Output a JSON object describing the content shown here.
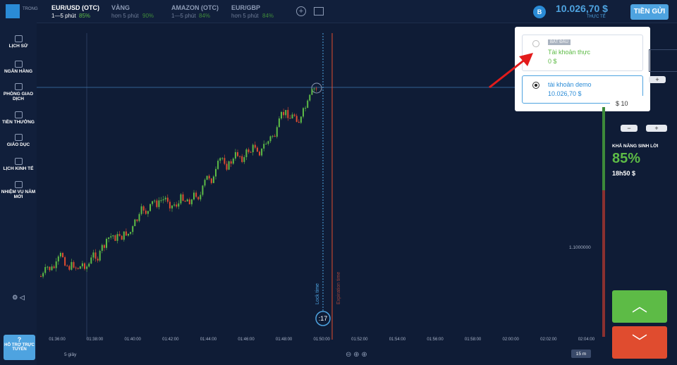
{
  "top_bar": {
    "logo": "TRONG",
    "assets": [
      {
        "name": "EUR/USD (OTC)",
        "duration": "1—5 phút",
        "payout": "85%"
      },
      {
        "name": "VÀNG",
        "duration": "hơn 5 phút",
        "payout": "90%"
      },
      {
        "name": "AMAZON (OTC)",
        "duration": "1—5 phút",
        "payout": "84%"
      },
      {
        "name": "EUR/GBP",
        "duration": "hơn 5 phút",
        "payout": "84%"
      }
    ],
    "avatar": "B",
    "balance": "10.026,70 $",
    "account_type": "THỰC TẾ",
    "deposit": "TIỀN GỬI"
  },
  "sidebar": {
    "items": [
      "LỊCH SỬ",
      "NGÂN HÀNG",
      "PHÒNG GIAO DỊCH",
      "TIỀN THƯỞNG",
      "GIÁO DỤC",
      "LỊCH KINH TẾ",
      "NHIỆM VỤ NĂM MỚI"
    ],
    "help_icon": "?",
    "help": "HỖ TRỢ TRỰC TUYẾN"
  },
  "popup": {
    "badge": "BẮT ĐẦU",
    "real_account": "Tài khoản thực",
    "real_balance": "0 $",
    "demo_account": "tài khoản demo",
    "demo_balance": "10.026,70 $"
  },
  "trade_panel": {
    "amount": "$ 10",
    "profit_label": "KHẢ NĂNG SINH LỜI",
    "profit_percent": "85%",
    "profit_amount": "18h50 $"
  },
  "chart": {
    "price_label": "1.1000000",
    "lock_time": "Lock time",
    "expiration_time": "Expiration time",
    "timer": ":17",
    "time_labels": [
      "01:36:00",
      "01:38:00",
      "01:40:00",
      "01:42:00",
      "01:44:00",
      "01:46:00",
      "01:48:00",
      "01:50:00",
      "01:52:00",
      "01:54:00",
      "01:56:00",
      "01:58:00",
      "02:00:00",
      "02:02:00",
      "02:04:00"
    ],
    "candle_period": "5 giây",
    "zoom": "15 m"
  }
}
